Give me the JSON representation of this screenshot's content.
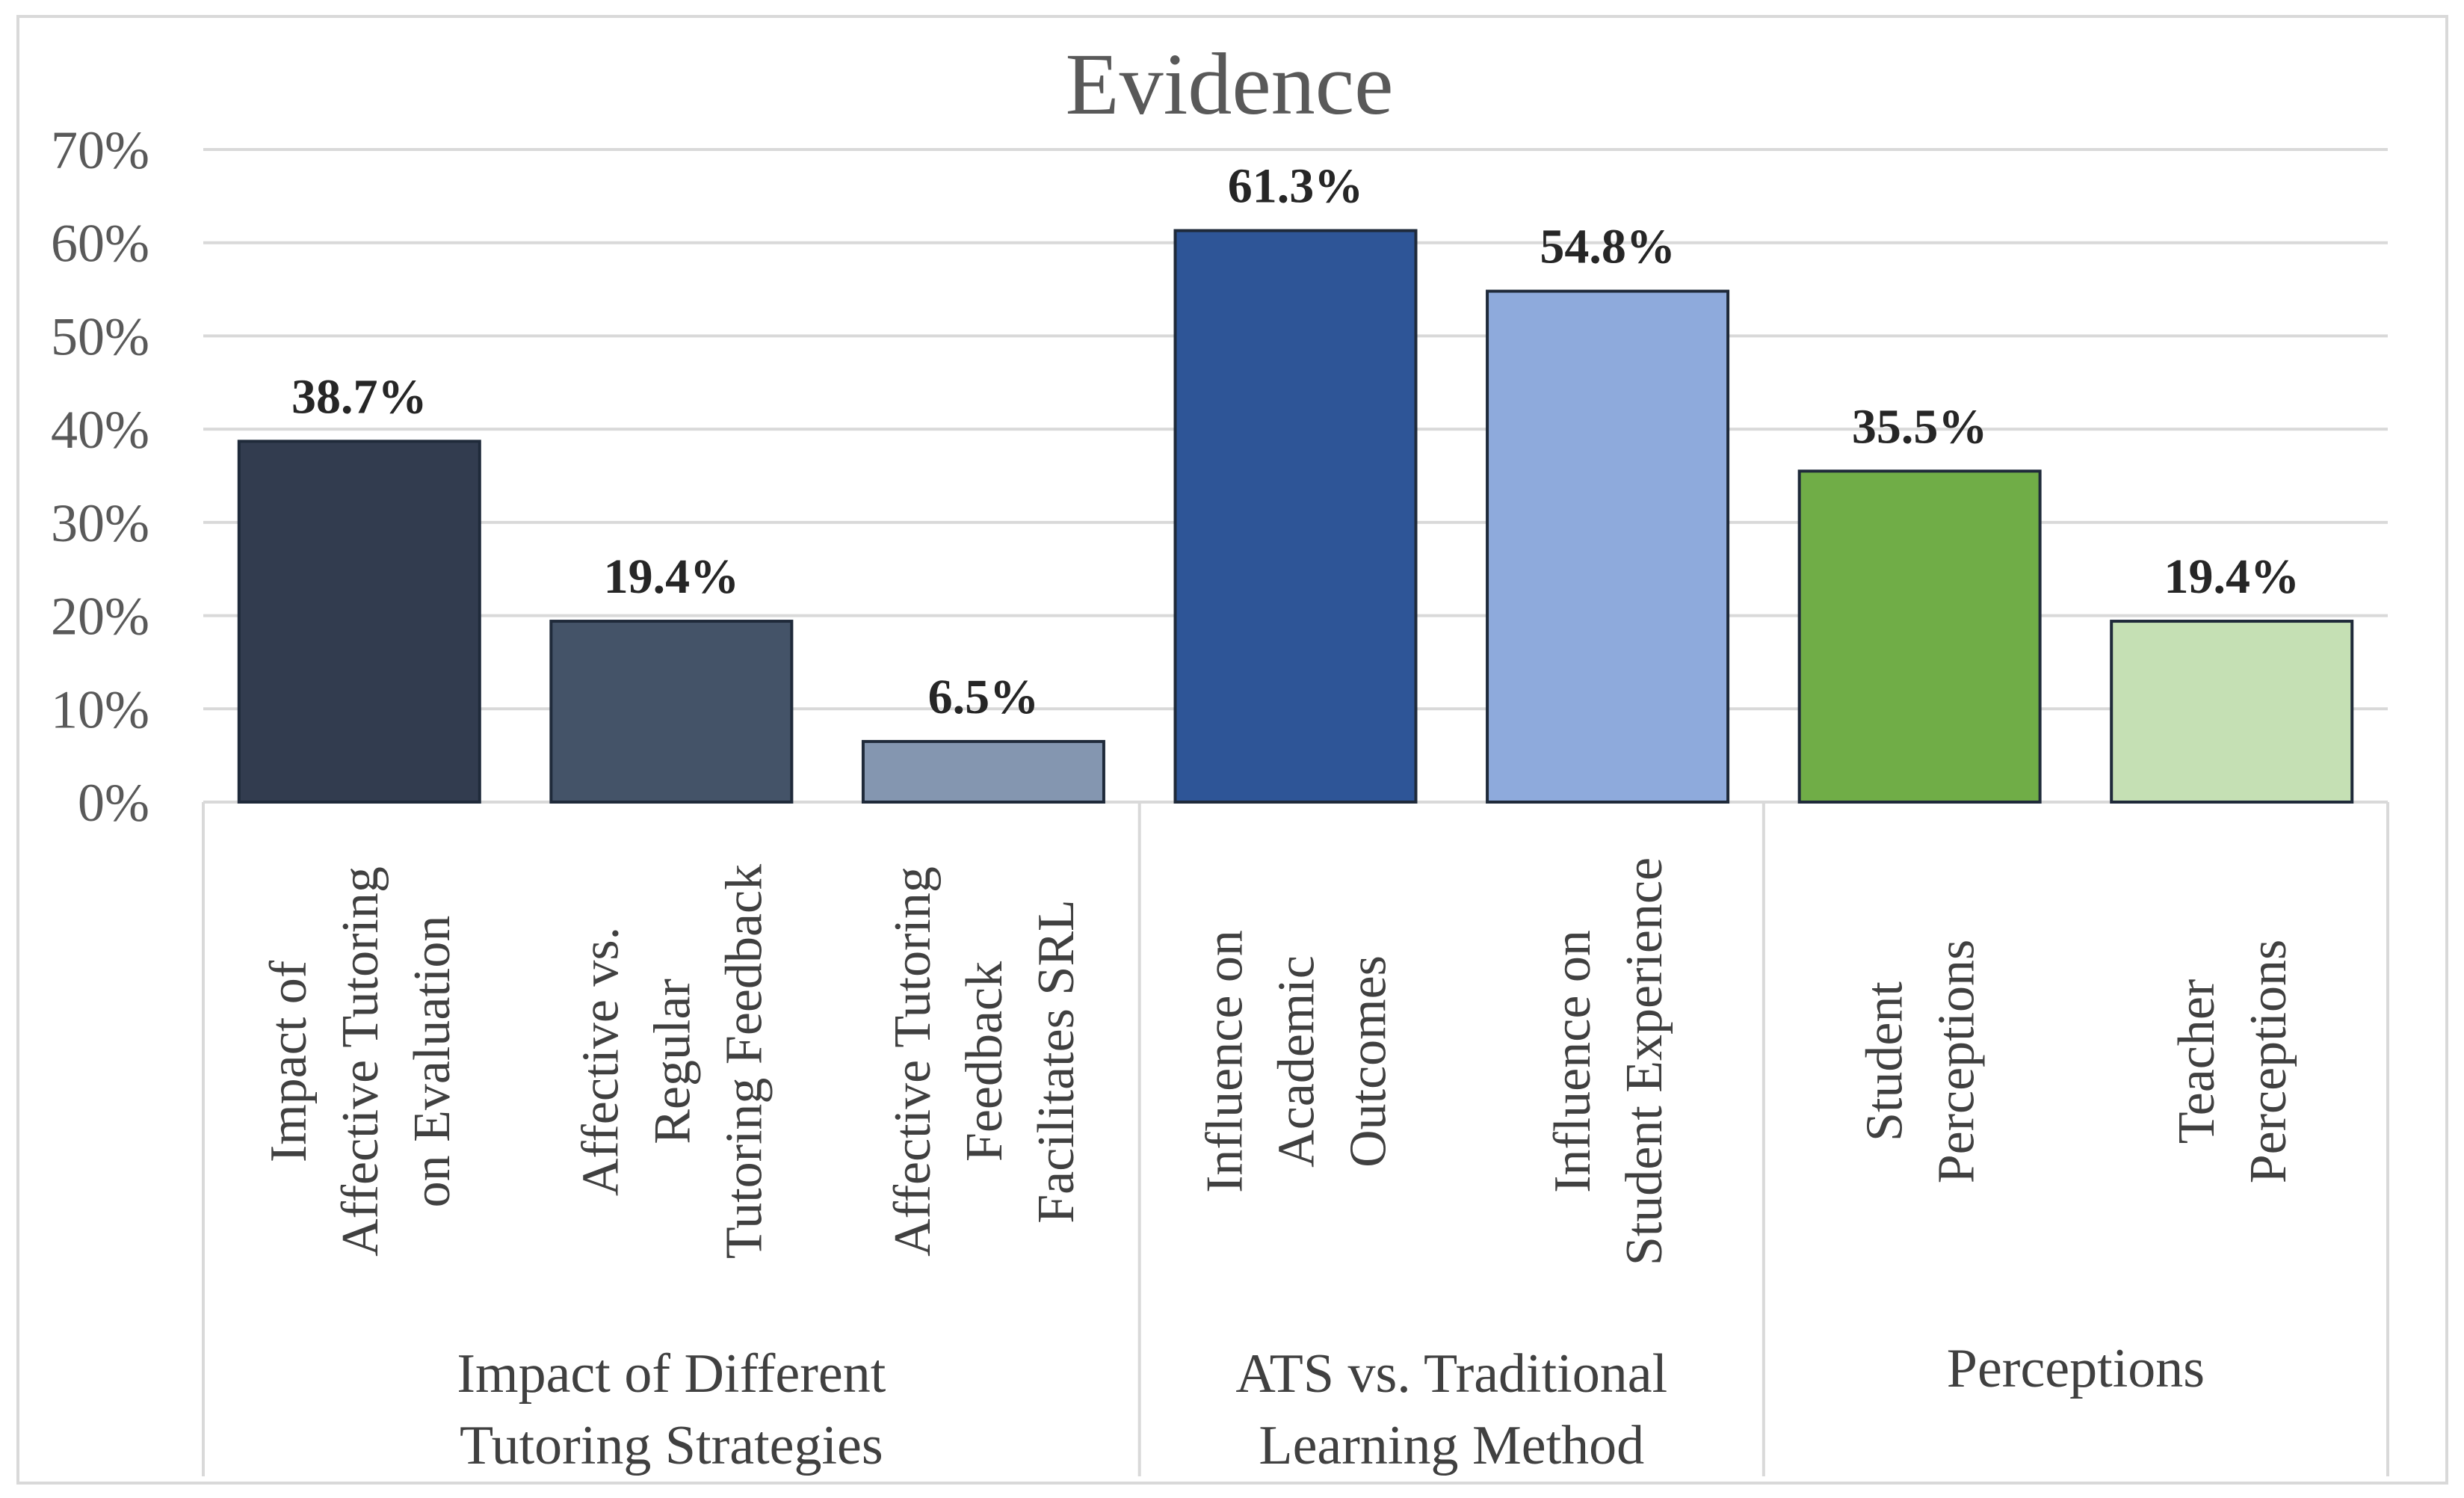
{
  "chart_data": {
    "type": "bar",
    "title": "Evidence",
    "xlabel": "",
    "ylabel": "",
    "ylim": [
      0,
      70
    ],
    "y_ticks": [
      "0%",
      "10%",
      "20%",
      "30%",
      "40%",
      "50%",
      "60%",
      "70%"
    ],
    "gridlines": true,
    "legend": "none",
    "groups": [
      {
        "name_lines": [
          "Impact of Different",
          "Tutoring Strategies"
        ],
        "bars": [
          {
            "label_lines": [
              "Impact of",
              "Affective Tutoring",
              "on Evaluation"
            ],
            "value": 38.7,
            "value_label": "38.7%",
            "color": "#323c4f"
          },
          {
            "label_lines": [
              "Affective vs.",
              "Regular",
              "Tutoring Feedback"
            ],
            "value": 19.4,
            "value_label": "19.4%",
            "color": "#445368"
          },
          {
            "label_lines": [
              "Affective Tutoring",
              "Feedback",
              "Facilitates SRL"
            ],
            "value": 6.5,
            "value_label": "6.5%",
            "color": "#8496b0"
          }
        ]
      },
      {
        "name_lines": [
          "ATS vs. Traditional",
          "Learning Method"
        ],
        "bars": [
          {
            "label_lines": [
              "Influence on",
              "Academic",
              "Outcomes"
            ],
            "value": 61.3,
            "value_label": "61.3%",
            "color": "#2e5597"
          },
          {
            "label_lines": [
              "Influence on",
              "Student Experience"
            ],
            "value": 54.8,
            "value_label": "54.8%",
            "color": "#8eaadc"
          }
        ]
      },
      {
        "name_lines": [
          "Perceptions"
        ],
        "bars": [
          {
            "label_lines": [
              "Student",
              "Perceptions"
            ],
            "value": 35.5,
            "value_label": "35.5%",
            "color": "#70ad47"
          },
          {
            "label_lines": [
              "Teacher",
              "Perceptions"
            ],
            "value": 19.4,
            "value_label": "19.4%",
            "color": "#c5e0b4"
          }
        ]
      }
    ]
  }
}
